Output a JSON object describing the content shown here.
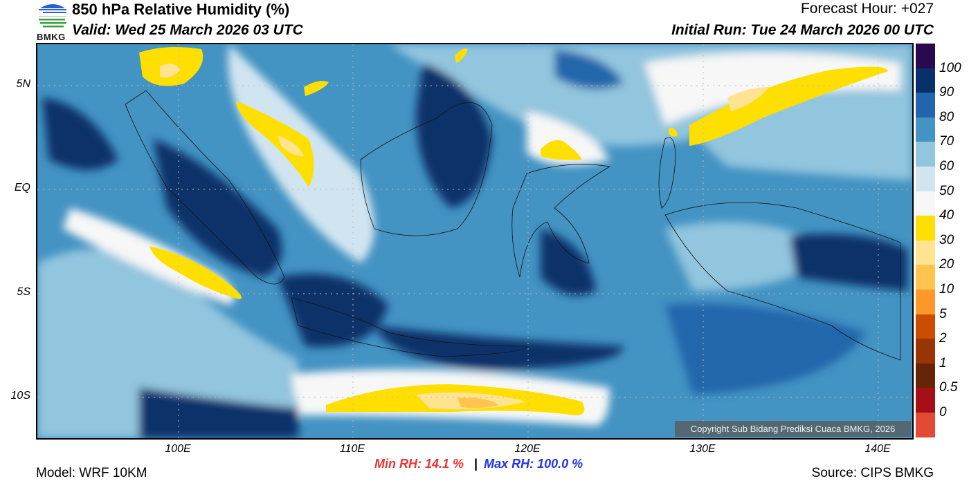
{
  "header": {
    "title": "850 hPa Relative Humidity (%)",
    "valid": "Valid: Wed 25 March 2026 03 UTC",
    "forecast_hour": "Forecast Hour: +027",
    "initial_run": "Initial Run: Tue 24 March 2026 00 UTC",
    "logo_text": "BMKG"
  },
  "axes": {
    "lat_labels": [
      "5N",
      "EQ",
      "5S",
      "10S"
    ],
    "lon_labels": [
      "100E",
      "110E",
      "120E",
      "130E",
      "140E"
    ]
  },
  "colorbar": {
    "labels": [
      "100",
      "90",
      "80",
      "70",
      "60",
      "50",
      "40",
      "30",
      "20",
      "10",
      "5",
      "2",
      "1",
      "0.5",
      "0"
    ],
    "colors": [
      "#2a0a4f",
      "#08306b",
      "#2166ac",
      "#4393c3",
      "#92c5de",
      "#d1e5f0",
      "#f7f7f7",
      "#ffdf00",
      "#fee391",
      "#fec44f",
      "#fe9929",
      "#cc4c02",
      "#993404",
      "#662506",
      "#a50f15",
      "#e34a33"
    ]
  },
  "stats": {
    "min": "Min RH:  14.1 %",
    "separator": "|",
    "max": "Max RH: 100.0 %",
    "min_color": "#ee3333",
    "max_color": "#2233ee"
  },
  "footer": {
    "model": "Model: WRF 10KM",
    "source": "Source: CIPS BMKG",
    "copyright": "Copyright Sub Bidang Prediksi Cuaca BMKG, 2026"
  }
}
